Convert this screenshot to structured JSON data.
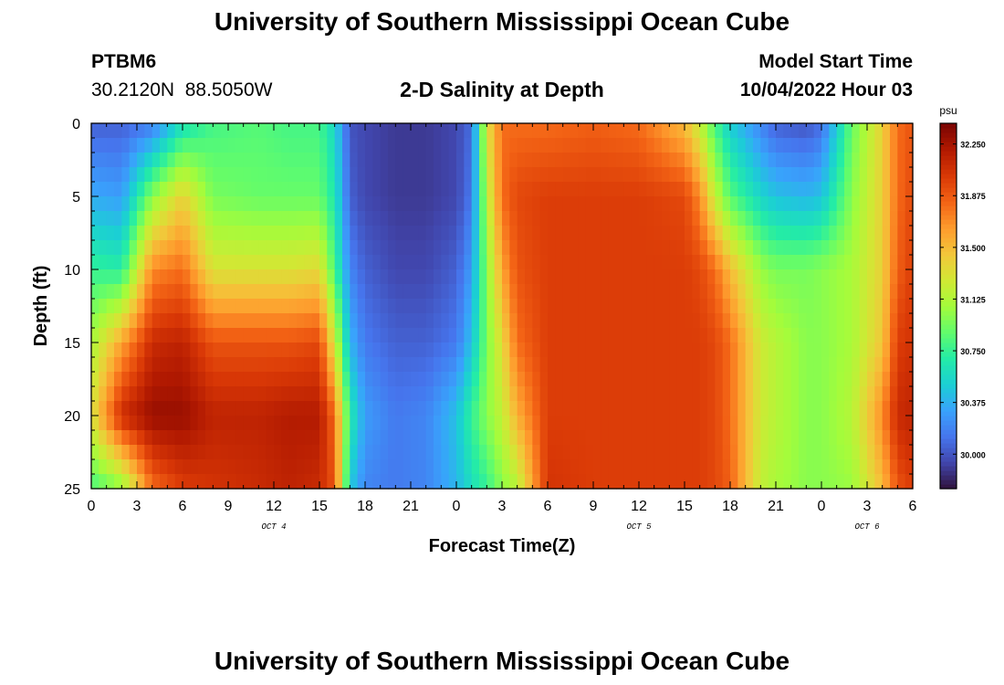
{
  "header": {
    "title": "University of Southern Mississippi Ocean Cube",
    "station": "PTBM6",
    "coords": "30.2120N  88.5050W",
    "subtitle": "2-D Salinity at Depth",
    "model_label": "Model Start Time",
    "model_time": "10/04/2022 Hour 03"
  },
  "footer": {
    "title": "University of Southern Mississippi Ocean Cube"
  },
  "chart_data": {
    "type": "heatmap",
    "title": "2-D Salinity at Depth",
    "xlabel": "Forecast Time(Z)",
    "ylabel": "Depth (ft)",
    "x_hours_range": [
      0,
      54
    ],
    "y_range": [
      0,
      25
    ],
    "y_inverted": true,
    "x_tick_labels": [
      "0",
      "3",
      "6",
      "9",
      "12",
      "15",
      "18",
      "21",
      "0",
      "3",
      "6",
      "9",
      "12",
      "15",
      "18",
      "21",
      "0",
      "3",
      "6"
    ],
    "x_tick_hours": [
      0,
      3,
      6,
      9,
      12,
      15,
      18,
      21,
      24,
      27,
      30,
      33,
      36,
      39,
      42,
      45,
      48,
      51,
      54
    ],
    "y_ticks": [
      0,
      5,
      10,
      15,
      20,
      25
    ],
    "y_tick_labels": [
      "0",
      "5",
      "10",
      "15",
      "20",
      "25"
    ],
    "date_labels": [
      {
        "text": "OCT 4",
        "hour": 12
      },
      {
        "text": "OCT 5",
        "hour": 36
      },
      {
        "text": "OCT 6",
        "hour": 51
      }
    ],
    "colorbar": {
      "unit": "psu",
      "min": 29.75,
      "max": 32.4,
      "ticks": [
        30.0,
        30.375,
        30.75,
        31.125,
        31.5,
        31.875,
        32.25
      ],
      "tick_labels": [
        "30.000",
        "30.375",
        "30.750",
        "31.125",
        "31.500",
        "31.875",
        "32.250"
      ],
      "colormap": [
        "#30123b",
        "#4145ab",
        "#4675ed",
        "#39a2fc",
        "#1bcfd4",
        "#24eca6",
        "#61fc6c",
        "#a4fc3b",
        "#d1e834",
        "#f3c63a",
        "#fe9b2d",
        "#f36315",
        "#d93806",
        "#b11901",
        "#7a0402"
      ]
    },
    "profiles": {
      "hours": [
        0,
        2,
        4,
        6,
        8,
        11,
        13,
        15,
        16,
        17,
        18,
        20,
        22,
        24,
        25,
        26,
        27,
        28,
        30,
        33,
        36,
        39,
        40,
        41,
        42,
        44,
        45,
        47,
        48,
        50,
        52,
        53,
        54
      ],
      "depths": [
        0,
        5,
        10,
        15,
        20,
        25
      ],
      "values": [
        [
          30.05,
          30.35,
          30.75,
          31.1,
          31.3,
          30.8
        ],
        [
          30.05,
          30.3,
          30.7,
          31.6,
          32.1,
          31.0
        ],
        [
          30.15,
          31.0,
          31.7,
          32.1,
          32.3,
          31.8
        ],
        [
          30.6,
          31.4,
          31.8,
          32.15,
          32.3,
          32.0
        ],
        [
          30.8,
          30.95,
          31.3,
          31.9,
          32.15,
          32.05
        ],
        [
          30.85,
          30.9,
          31.3,
          31.9,
          32.15,
          32.1
        ],
        [
          30.8,
          30.9,
          31.3,
          31.9,
          32.2,
          32.15
        ],
        [
          30.8,
          30.9,
          31.35,
          31.95,
          32.2,
          32.1
        ],
        [
          30.55,
          30.65,
          30.8,
          31.25,
          31.8,
          31.9
        ],
        [
          30.0,
          30.05,
          30.2,
          30.4,
          30.7,
          30.5
        ],
        [
          29.95,
          29.95,
          30.05,
          30.15,
          30.3,
          30.2
        ],
        [
          29.9,
          29.9,
          29.95,
          30.05,
          30.15,
          30.15
        ],
        [
          29.9,
          29.9,
          29.95,
          30.05,
          30.2,
          30.2
        ],
        [
          29.95,
          29.95,
          30.05,
          30.15,
          30.45,
          30.4
        ],
        [
          30.1,
          30.15,
          30.3,
          30.45,
          30.75,
          30.6
        ],
        [
          31.3,
          31.15,
          31.0,
          30.95,
          31.0,
          30.75
        ],
        [
          31.8,
          31.8,
          31.6,
          31.35,
          31.2,
          31.0
        ],
        [
          31.8,
          31.95,
          31.9,
          31.8,
          31.55,
          31.15
        ],
        [
          31.8,
          32.0,
          32.0,
          32.0,
          32.0,
          32.05
        ],
        [
          31.85,
          32.0,
          32.0,
          32.0,
          32.0,
          32.0
        ],
        [
          31.8,
          32.0,
          32.0,
          32.0,
          32.0,
          32.0
        ],
        [
          31.5,
          31.95,
          32.0,
          32.0,
          32.0,
          32.0
        ],
        [
          31.2,
          31.7,
          31.95,
          32.0,
          32.0,
          32.0
        ],
        [
          30.8,
          31.2,
          31.8,
          31.95,
          31.95,
          31.95
        ],
        [
          30.5,
          30.85,
          31.5,
          31.8,
          31.8,
          31.85
        ],
        [
          30.2,
          30.55,
          31.05,
          31.25,
          31.25,
          31.2
        ],
        [
          30.05,
          30.45,
          30.95,
          31.15,
          31.15,
          31.1
        ],
        [
          30.0,
          30.4,
          30.95,
          31.0,
          31.0,
          31.0
        ],
        [
          30.1,
          30.45,
          31.0,
          31.0,
          31.0,
          31.0
        ],
        [
          30.9,
          31.0,
          31.1,
          31.1,
          31.15,
          31.05
        ],
        [
          31.4,
          31.4,
          31.4,
          31.45,
          31.7,
          31.5
        ],
        [
          31.8,
          31.8,
          31.85,
          32.0,
          32.1,
          31.9
        ],
        [
          31.9,
          31.95,
          32.0,
          32.05,
          32.15,
          32.0
        ]
      ]
    }
  }
}
